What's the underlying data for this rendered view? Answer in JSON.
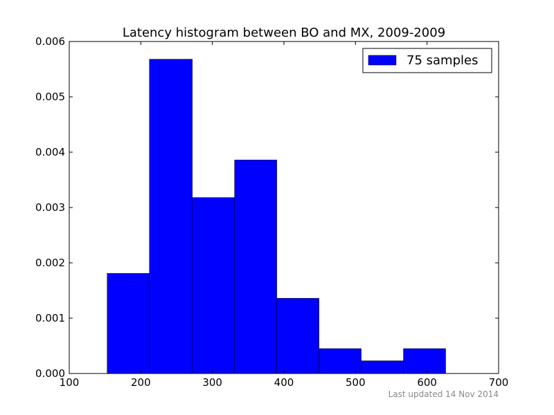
{
  "chart_data": {
    "type": "bar",
    "title": "Latency histogram between BO and MX, 2009-2009",
    "xlabel": "",
    "ylabel": "",
    "xlim": [
      100,
      700
    ],
    "ylim": [
      0,
      0.006
    ],
    "x_ticks": [
      100,
      200,
      300,
      400,
      500,
      600,
      700
    ],
    "x_tick_labels": [
      "100",
      "200",
      "300",
      "400",
      "500",
      "600",
      "700"
    ],
    "y_ticks": [
      0,
      0.001,
      0.002,
      0.003,
      0.004,
      0.005,
      0.006
    ],
    "y_tick_labels": [
      "0.000",
      "0.001",
      "0.002",
      "0.003",
      "0.004",
      "0.005",
      "0.006"
    ],
    "bins": [
      {
        "start": 153,
        "end": 212,
        "value": 0.00181
      },
      {
        "start": 212,
        "end": 272,
        "value": 0.00568
      },
      {
        "start": 272,
        "end": 331,
        "value": 0.00318
      },
      {
        "start": 331,
        "end": 390,
        "value": 0.00386
      },
      {
        "start": 390,
        "end": 449,
        "value": 0.00136
      },
      {
        "start": 449,
        "end": 508,
        "value": 0.00045
      },
      {
        "start": 508,
        "end": 567,
        "value": 0.00023
      },
      {
        "start": 567,
        "end": 626,
        "value": 0.00045
      }
    ],
    "legend": {
      "label": "75 samples",
      "placement": "top-right"
    },
    "bar_color": "#0000ff",
    "grid": false,
    "footnote": "Last updated 14 Nov 2014"
  }
}
